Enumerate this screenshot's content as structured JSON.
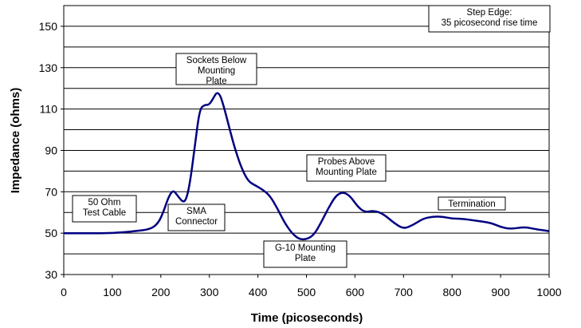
{
  "chart_data": {
    "type": "line",
    "xlabel": "Time (picoseconds)",
    "ylabel": "Impedance (ohms)",
    "xlim": [
      0,
      1000
    ],
    "ylim": [
      30,
      160
    ],
    "x_ticks": [
      0,
      100,
      200,
      300,
      400,
      500,
      600,
      700,
      800,
      900,
      1000
    ],
    "y_ticks": [
      30,
      50,
      70,
      90,
      110,
      130,
      150
    ],
    "grid": "horizontal",
    "series_color": "#000080",
    "series": [
      {
        "x": [
          0,
          50,
          100,
          150,
          180,
          195,
          205,
          215,
          225,
          235,
          245,
          252,
          260,
          270,
          280,
          290,
          300,
          310,
          315,
          322,
          330,
          340,
          350,
          365,
          380,
          395,
          410,
          425,
          440,
          455,
          470,
          485,
          500,
          515,
          530,
          545,
          560,
          575,
          590,
          605,
          620,
          640,
          660,
          680,
          700,
          720,
          740,
          760,
          780,
          800,
          820,
          850,
          880,
          900,
          920,
          950,
          970,
          1000
        ],
        "y": [
          50,
          50,
          50,
          51,
          52,
          55,
          60,
          67,
          71,
          68,
          65,
          66,
          74,
          92,
          110,
          112,
          112,
          116,
          118,
          117,
          111,
          102,
          93,
          82,
          75,
          73,
          71,
          68,
          62,
          55,
          50,
          47,
          47,
          49,
          55,
          62,
          68,
          70,
          68,
          63,
          60,
          61,
          59,
          55,
          52,
          54,
          57,
          58,
          58,
          57,
          57,
          56,
          55,
          53,
          52,
          53,
          52,
          51
        ]
      }
    ],
    "annotations": [
      {
        "name": "step-edge",
        "lines": [
          "Step Edge:",
          "35 picosecond rise time"
        ]
      },
      {
        "name": "sockets-below",
        "lines": [
          "Sockets Below",
          "Mounting",
          "Plate"
        ]
      },
      {
        "name": "test-cable",
        "lines": [
          "50 Ohm",
          "Test Cable"
        ]
      },
      {
        "name": "sma-connector",
        "lines": [
          "SMA",
          "Connector"
        ]
      },
      {
        "name": "probes-above",
        "lines": [
          "Probes Above",
          "Mounting Plate"
        ]
      },
      {
        "name": "g10-plate",
        "lines": [
          "G-10 Mounting",
          "Plate"
        ]
      },
      {
        "name": "termination",
        "lines": [
          "Termination"
        ]
      }
    ]
  }
}
